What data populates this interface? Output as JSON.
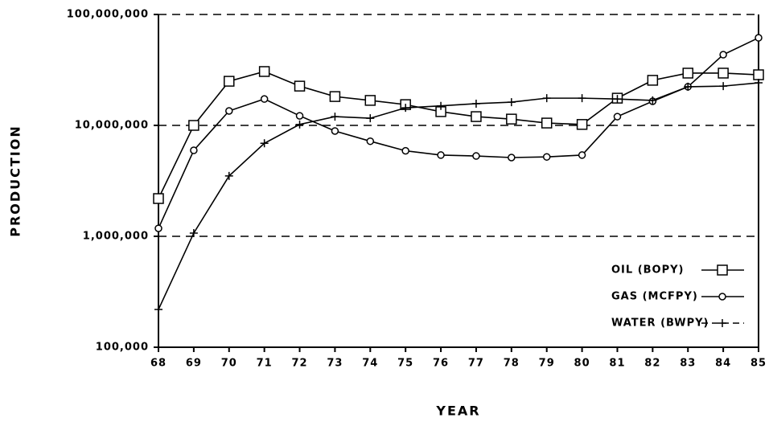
{
  "chart_data": {
    "type": "line",
    "xlabel": "YEAR",
    "ylabel": "PRODUCTION",
    "x": [
      68,
      69,
      70,
      71,
      72,
      73,
      74,
      75,
      76,
      77,
      78,
      79,
      80,
      81,
      82,
      83,
      84,
      85
    ],
    "xlim": [
      68,
      85
    ],
    "xticks": [
      68,
      69,
      70,
      71,
      72,
      73,
      74,
      75,
      76,
      77,
      78,
      79,
      80,
      81,
      82,
      83,
      84,
      85
    ],
    "yscale": "log",
    "ylim": [
      100000,
      100000000
    ],
    "yticks": [
      {
        "value": 100000,
        "label": "100,000"
      },
      {
        "value": 1000000,
        "label": "1,000,000"
      },
      {
        "value": 10000000,
        "label": "10,000,000"
      },
      {
        "value": 100000000,
        "label": "100,000,000"
      }
    ],
    "grid": true,
    "legend": "lower right",
    "series": [
      {
        "name": "OIL (BOPY)",
        "color": "#000000",
        "marker": "square",
        "values": [
          2190000,
          10000000,
          25000000,
          30600000,
          22600000,
          18200000,
          16800000,
          15400000,
          13300000,
          12000000,
          11400000,
          10500000,
          10200000,
          17600000,
          25500000,
          29600000,
          29600000,
          28600000
        ]
      },
      {
        "name": "GAS (MCFPY)",
        "color": "#000000",
        "marker": "circle",
        "values": [
          1180000,
          5960000,
          13500000,
          17300000,
          12200000,
          8900000,
          7200000,
          5900000,
          5400000,
          5300000,
          5130000,
          5200000,
          5400000,
          12000000,
          16500000,
          22300000,
          43400000,
          61600000
        ]
      },
      {
        "name": "WATER (BWPY)",
        "color": "#000000",
        "marker": "plus",
        "values": [
          219000,
          1070000,
          3500000,
          6900000,
          10200000,
          12000000,
          11600000,
          14400000,
          15000000,
          15700000,
          16200000,
          17600000,
          17600000,
          17300000,
          16800000,
          22300000,
          22600000,
          24200000
        ]
      }
    ]
  }
}
